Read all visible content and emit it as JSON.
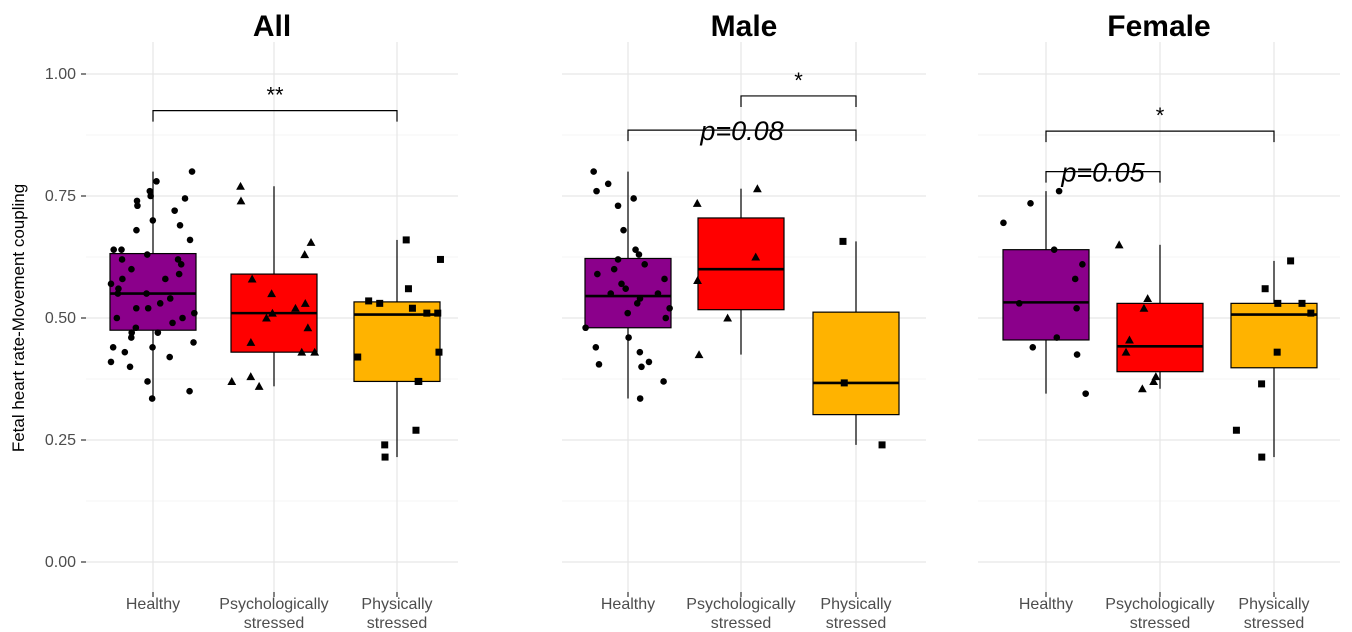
{
  "chart_data": {
    "type": "box",
    "ylabel": "Fetal heart rate-Movement coupling",
    "ylim": [
      0,
      1
    ],
    "yticks": [
      "0.00",
      "0.25",
      "0.50",
      "0.75",
      "1.00"
    ],
    "yticks_values": [
      0,
      0.25,
      0.5,
      0.75,
      1.0
    ],
    "categories": [
      {
        "line1": "Healthy",
        "line2": ""
      },
      {
        "line1": "Psychologically",
        "line2": "stressed"
      },
      {
        "line1": "Physically",
        "line2": "stressed"
      }
    ],
    "colors": [
      "#8b008b",
      "#ff0000",
      "#ffb300"
    ],
    "marker_shapes": [
      "circle",
      "triangle",
      "square"
    ],
    "grid": true,
    "panels": [
      {
        "title": "All",
        "boxes": [
          {
            "q1": 0.475,
            "median": 0.55,
            "q3": 0.632,
            "whisker_low": 0.335,
            "whisker_high": 0.8
          },
          {
            "q1": 0.43,
            "median": 0.51,
            "q3": 0.59,
            "whisker_low": 0.36,
            "whisker_high": 0.77
          },
          {
            "q1": 0.37,
            "median": 0.507,
            "q3": 0.533,
            "whisker_low": 0.215,
            "whisker_high": 0.66
          }
        ],
        "points": [
          [
            0.37,
            0.335,
            0.4,
            0.41,
            0.43,
            0.44,
            0.45,
            0.46,
            0.47,
            0.48,
            0.49,
            0.5,
            0.51,
            0.52,
            0.53,
            0.54,
            0.55,
            0.56,
            0.57,
            0.58,
            0.59,
            0.6,
            0.61,
            0.62,
            0.63,
            0.64,
            0.66,
            0.68,
            0.7,
            0.72,
            0.74,
            0.75,
            0.76,
            0.78,
            0.8,
            0.35,
            0.42,
            0.44,
            0.47,
            0.5,
            0.52,
            0.55,
            0.58,
            0.62,
            0.64,
            0.69,
            0.73,
            0.745
          ],
          [
            0.38,
            0.36,
            0.37,
            0.43,
            0.43,
            0.45,
            0.48,
            0.5,
            0.51,
            0.52,
            0.53,
            0.55,
            0.58,
            0.63,
            0.655,
            0.74,
            0.77
          ],
          [
            0.215,
            0.24,
            0.27,
            0.37,
            0.37,
            0.42,
            0.43,
            0.51,
            0.51,
            0.52,
            0.53,
            0.535,
            0.56,
            0.62,
            0.66
          ]
        ],
        "comparisons": [
          {
            "from": 0,
            "to": 2,
            "y": 0.925,
            "label": "**",
            "italic": false
          }
        ]
      },
      {
        "title": "Male",
        "boxes": [
          {
            "q1": 0.48,
            "median": 0.545,
            "q3": 0.622,
            "whisker_low": 0.335,
            "whisker_high": 0.8
          },
          {
            "q1": 0.517,
            "median": 0.6,
            "q3": 0.705,
            "whisker_low": 0.425,
            "whisker_high": 0.765
          },
          {
            "q1": 0.302,
            "median": 0.367,
            "q3": 0.512,
            "whisker_low": 0.24,
            "whisker_high": 0.657
          }
        ],
        "points": [
          [
            0.335,
            0.37,
            0.4,
            0.405,
            0.41,
            0.43,
            0.44,
            0.46,
            0.48,
            0.5,
            0.51,
            0.52,
            0.53,
            0.54,
            0.55,
            0.55,
            0.56,
            0.57,
            0.58,
            0.59,
            0.6,
            0.61,
            0.62,
            0.63,
            0.64,
            0.68,
            0.73,
            0.745,
            0.76,
            0.775,
            0.8
          ],
          [
            0.425,
            0.5,
            0.577,
            0.625,
            0.735,
            0.765
          ],
          [
            0.24,
            0.367,
            0.657
          ]
        ],
        "comparisons": [
          {
            "from": 1,
            "to": 2,
            "y": 0.955,
            "label": "*",
            "italic": false
          },
          {
            "from": 0,
            "to": 2,
            "y": 0.885,
            "label": "p=0.08",
            "italic": true
          }
        ]
      },
      {
        "title": "Female",
        "boxes": [
          {
            "q1": 0.455,
            "median": 0.532,
            "q3": 0.64,
            "whisker_low": 0.345,
            "whisker_high": 0.76
          },
          {
            "q1": 0.39,
            "median": 0.442,
            "q3": 0.53,
            "whisker_low": 0.355,
            "whisker_high": 0.65
          },
          {
            "q1": 0.398,
            "median": 0.507,
            "q3": 0.53,
            "whisker_low": 0.215,
            "whisker_high": 0.617
          }
        ],
        "points": [
          [
            0.345,
            0.425,
            0.44,
            0.46,
            0.52,
            0.53,
            0.58,
            0.61,
            0.64,
            0.695,
            0.735,
            0.76
          ],
          [
            0.355,
            0.37,
            0.38,
            0.43,
            0.455,
            0.52,
            0.54,
            0.65
          ],
          [
            0.215,
            0.27,
            0.365,
            0.43,
            0.51,
            0.53,
            0.53,
            0.56,
            0.617
          ]
        ],
        "comparisons": [
          {
            "from": 0,
            "to": 2,
            "y": 0.883,
            "label": "*",
            "italic": false
          },
          {
            "from": 0,
            "to": 1,
            "y": 0.8,
            "label": "p=0.05",
            "italic": true
          }
        ]
      }
    ]
  }
}
